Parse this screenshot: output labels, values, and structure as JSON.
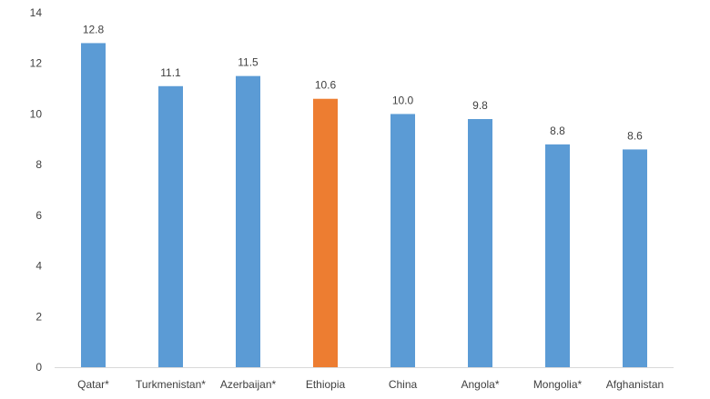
{
  "chart_data": {
    "type": "bar",
    "categories": [
      "Qatar*",
      "Turkmenistan*",
      "Azerbaijan*",
      "Ethiopia",
      "China",
      "Angola*",
      "Mongolia*",
      "Afghanistan"
    ],
    "values": [
      12.8,
      11.1,
      11.5,
      10.6,
      10.0,
      9.8,
      8.8,
      8.6
    ],
    "data_labels": [
      "12.8",
      "11.1",
      "11.5",
      "10.6",
      "10.0",
      "9.8",
      "8.8",
      "8.6"
    ],
    "y_ticks": [
      "0",
      "2",
      "4",
      "6",
      "8",
      "10",
      "12",
      "14"
    ],
    "ylim": [
      0,
      14
    ],
    "grid": false,
    "legend": "none",
    "colors": {
      "default": "#5b9bd5",
      "highlight": "#ed7d31",
      "axis": "#d9d9d9"
    },
    "highlight_index": 3
  }
}
